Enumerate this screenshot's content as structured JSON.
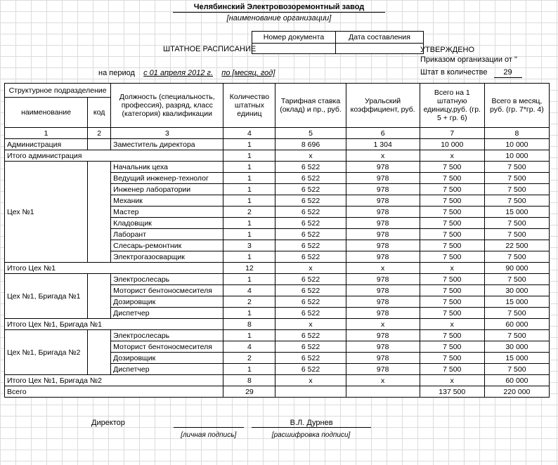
{
  "header": {
    "org_name": "Челябинский Электровозоремонтный завод",
    "org_sub": "[наименование организации]",
    "doc_no_label": "Номер документа",
    "date_label": "Дата составления",
    "doc_title": "ШТАТНОЕ РАСПИСАНИЕ",
    "approved": "УТВЕРЖДЕНО",
    "approved_line2": "Приказом организации от \"",
    "staff_label": "Штат в количестве",
    "staff_count": "29",
    "period_label": "на период",
    "period_from": "с 01 апреля 2012 г.",
    "period_to": "по [месяц, год]"
  },
  "columns": {
    "c1_top": "Структурное подразделение",
    "c1a": "наименование",
    "c1b": "код",
    "c2": "Должность (специальность, профессия), разряд, класс (категория) квалификации",
    "c3": "Количество штатных единиц",
    "c4": "Тарифная ставка (оклад) и пр., руб.",
    "c5": "Уральский коэффициент, руб.",
    "c6": "Всего на 1 штатную единицу,руб. (гр. 5 + гр. 6)",
    "c7": "Всего в месяц, руб. (гр. 7*гр. 4)"
  },
  "colnums": [
    "1",
    "2",
    "3",
    "4",
    "5",
    "6",
    "7",
    "8"
  ],
  "rows": [
    {
      "unit": "Администрация",
      "code": "",
      "pos": "Заместитель директора",
      "qty": "1",
      "rate": "8 696",
      "coef": "1 304",
      "per1": "10 000",
      "total": "10 000"
    }
  ],
  "tot_admin": {
    "label": "Итого администрация",
    "qty": "1",
    "rate": "x",
    "coef": "x",
    "per1": "x",
    "total": "10 000"
  },
  "ceh1_unit": "Цех №1",
  "ceh1": [
    {
      "pos": "Начальник цеха",
      "qty": "1",
      "rate": "6 522",
      "coef": "978",
      "per1": "7 500",
      "total": "7 500"
    },
    {
      "pos": "Ведущий инженер-технолог",
      "qty": "1",
      "rate": "6 522",
      "coef": "978",
      "per1": "7 500",
      "total": "7 500"
    },
    {
      "pos": "Инженер лаборатории",
      "qty": "1",
      "rate": "6 522",
      "coef": "978",
      "per1": "7 500",
      "total": "7 500"
    },
    {
      "pos": "Механик",
      "qty": "1",
      "rate": "6 522",
      "coef": "978",
      "per1": "7 500",
      "total": "7 500"
    },
    {
      "pos": "Мастер",
      "qty": "2",
      "rate": "6 522",
      "coef": "978",
      "per1": "7 500",
      "total": "15 000"
    },
    {
      "pos": "Кладовщик",
      "qty": "1",
      "rate": "6 522",
      "coef": "978",
      "per1": "7 500",
      "total": "7 500"
    },
    {
      "pos": "Лаборант",
      "qty": "1",
      "rate": "6 522",
      "coef": "978",
      "per1": "7 500",
      "total": "7 500"
    },
    {
      "pos": "Слесарь-ремонтник",
      "qty": "3",
      "rate": "6 522",
      "coef": "978",
      "per1": "7 500",
      "total": "22 500"
    },
    {
      "pos": "Электрогазосварщик",
      "qty": "1",
      "rate": "6 522",
      "coef": "978",
      "per1": "7 500",
      "total": "7 500"
    }
  ],
  "tot_ceh1": {
    "label": "Итого Цех №1",
    "qty": "12",
    "rate": "x",
    "coef": "x",
    "per1": "x",
    "total": "90 000"
  },
  "b1_unit": "Цех №1, Бригада №1",
  "b1": [
    {
      "pos": "Электрослесарь",
      "qty": "1",
      "rate": "6 522",
      "coef": "978",
      "per1": "7 500",
      "total": "7 500"
    },
    {
      "pos": "Моторист бентоносмесителя",
      "qty": "4",
      "rate": "6 522",
      "coef": "978",
      "per1": "7 500",
      "total": "30 000"
    },
    {
      "pos": "Дозировщик",
      "qty": "2",
      "rate": "6 522",
      "coef": "978",
      "per1": "7 500",
      "total": "15 000"
    },
    {
      "pos": "Диспетчер",
      "qty": "1",
      "rate": "6 522",
      "coef": "978",
      "per1": "7 500",
      "total": "7 500"
    }
  ],
  "tot_b1": {
    "label": "Итого Цех №1, Бригада №1",
    "qty": "8",
    "rate": "x",
    "coef": "x",
    "per1": "x",
    "total": "60 000"
  },
  "b2_unit": "Цех №1, Бригада №2",
  "b2": [
    {
      "pos": "Электрослесарь",
      "qty": "1",
      "rate": "6 522",
      "coef": "978",
      "per1": "7 500",
      "total": "7 500"
    },
    {
      "pos": "Моторист бентоносмесителя",
      "qty": "4",
      "rate": "6 522",
      "coef": "978",
      "per1": "7 500",
      "total": "30 000"
    },
    {
      "pos": "Дозировщик",
      "qty": "2",
      "rate": "6 522",
      "coef": "978",
      "per1": "7 500",
      "total": "15 000"
    },
    {
      "pos": "Диспетчер",
      "qty": "1",
      "rate": "6 522",
      "coef": "978",
      "per1": "7 500",
      "total": "7 500"
    }
  ],
  "tot_b2": {
    "label": "Итого Цех №1, Бригада №2",
    "qty": "8",
    "rate": "x",
    "coef": "x",
    "per1": "x",
    "total": "60 000"
  },
  "grand": {
    "label": "Всего",
    "qty": "29",
    "rate": "",
    "coef": "",
    "per1": "137 500",
    "total": "220 000"
  },
  "footer": {
    "role": "Директор",
    "name": "В.Л. Дурнев",
    "sub_sig": "[личная подпись]",
    "sub_name": "[расшифровка подписи]"
  }
}
